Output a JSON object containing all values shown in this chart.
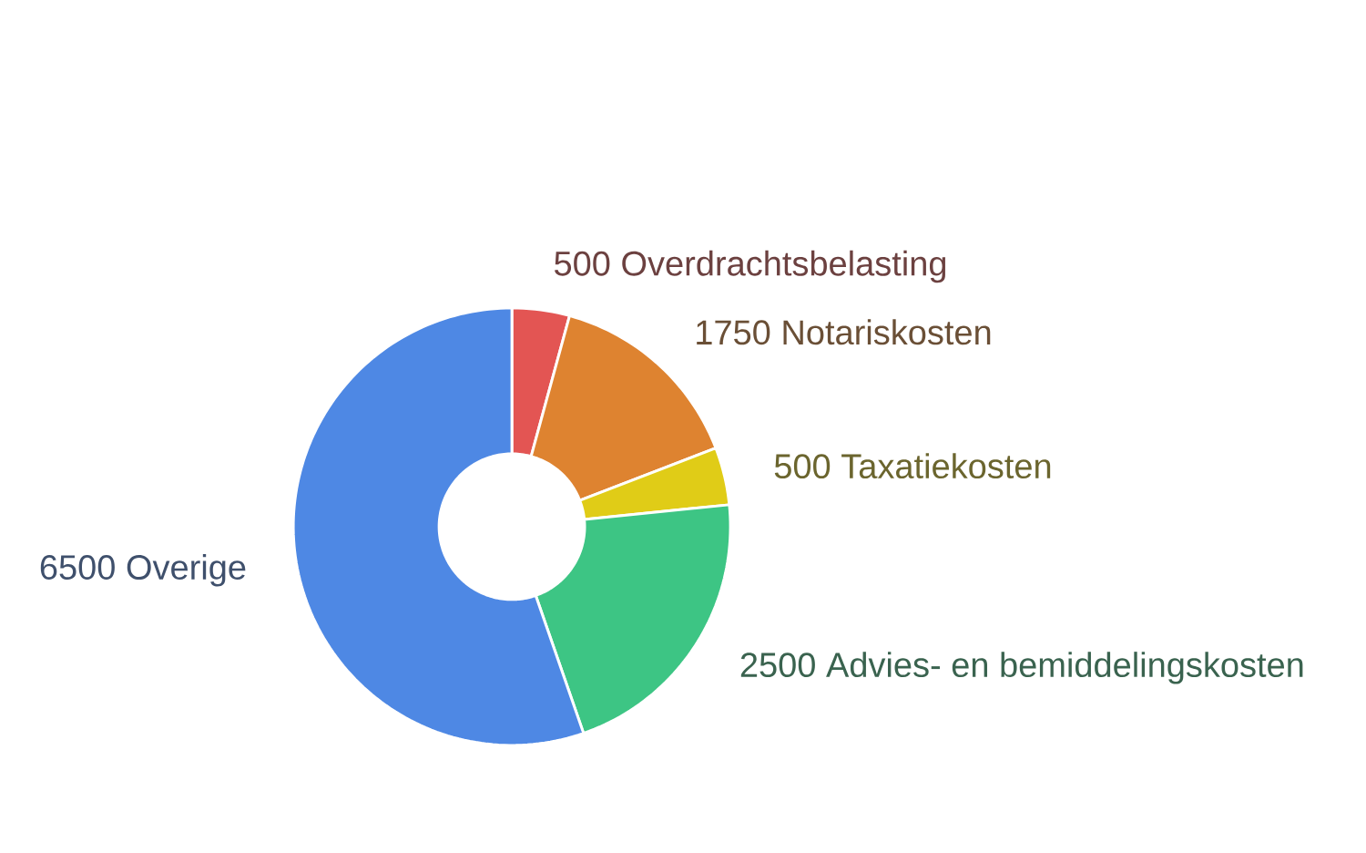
{
  "chart_data": {
    "type": "donut",
    "categories": [
      "Overdrachtsbelasting",
      "Notariskosten",
      "Taxatiekosten",
      "Advies- en bemiddelingskosten",
      "Overige"
    ],
    "values": [
      500,
      1750,
      500,
      2500,
      6500
    ],
    "colors": [
      "#e35553",
      "#de8330",
      "#e0cc17",
      "#3dc584",
      "#4e88e4"
    ],
    "data_labels": true
  }
}
